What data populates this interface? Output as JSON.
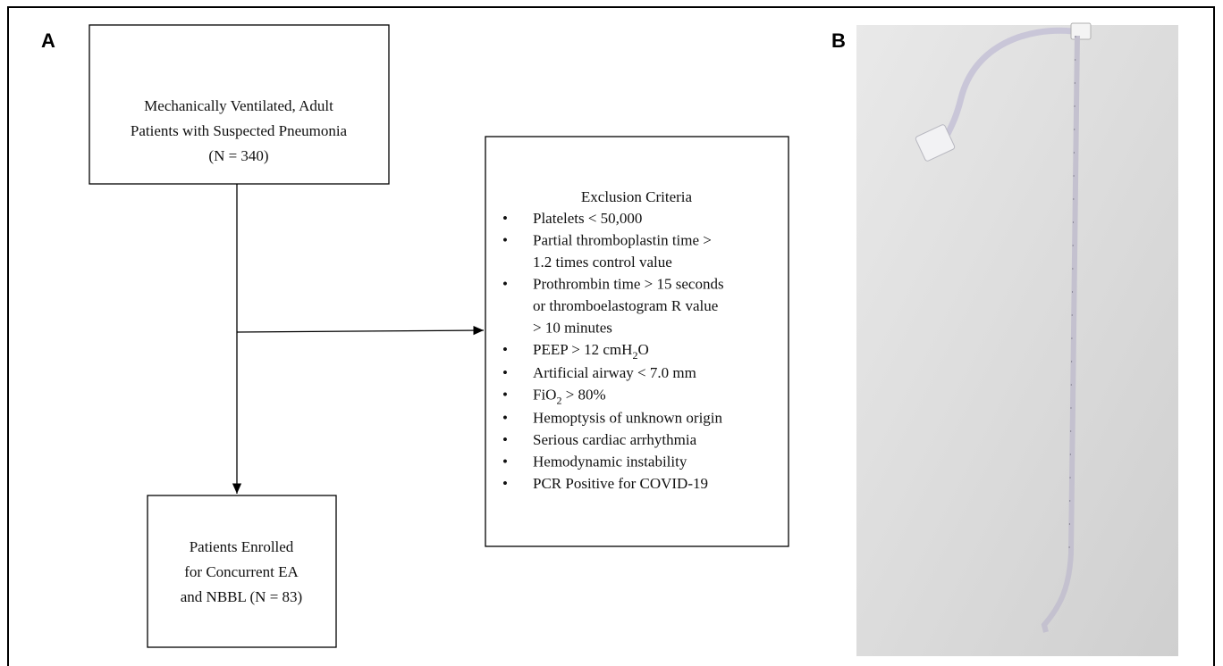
{
  "panels": {
    "a": "A",
    "b": "B"
  },
  "nodes": [
    {
      "lines": [
        "Mechanically Ventilated, Adult",
        "Patients with Suspected Pneumonia",
        "(N = 340)"
      ]
    },
    {
      "title": "Exclusion Criteria",
      "items": [
        {
          "lines": [
            "Platelets  < 50,000"
          ]
        },
        {
          "lines": [
            "Partial thromboplastin time  >",
            "1.2 times  control value"
          ]
        },
        {
          "lines": [
            "Prothrombin time > 15 seconds",
            "or thromboelastogram  R value",
            "> 10 minutes"
          ]
        },
        {
          "sub": [
            "PEEP > 12 cmH",
            "2",
            "O"
          ]
        },
        {
          "lines": [
            "Artificial  airway  < 7.0 mm"
          ]
        },
        {
          "sub": [
            "FiO",
            "2",
            " > 80%"
          ]
        },
        {
          "lines": [
            "Hemoptysis of unknown origin"
          ]
        },
        {
          "lines": [
            "Serious cardiac arrhythmia"
          ]
        },
        {
          "lines": [
            "Hemodynamic instability"
          ]
        },
        {
          "lines": [
            "PCR Positive  for COVID-19"
          ]
        }
      ]
    },
    {
      "lines": [
        "Patients Enrolled",
        "for Concurrent EA",
        "and NBBL (N = 83)"
      ]
    }
  ]
}
